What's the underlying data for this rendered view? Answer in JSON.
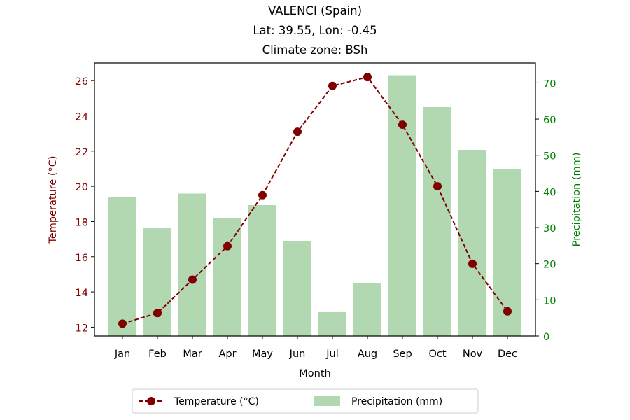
{
  "title_lines": [
    "VALENCI (Spain)",
    "Lat: 39.55, Lon: -0.45",
    "Climate zone: BSh"
  ],
  "chart_data": {
    "type": "bar+line",
    "title": "VALENCI (Spain)\nLat: 39.55, Lon: -0.45\nClimate zone: BSh",
    "xlabel": "Month",
    "categories": [
      "Jan",
      "Feb",
      "Mar",
      "Apr",
      "May",
      "Jun",
      "Jul",
      "Aug",
      "Sep",
      "Oct",
      "Nov",
      "Dec"
    ],
    "temperature": {
      "name": "Temperature (°C)",
      "axis_label": "Temperature (°C)",
      "values": [
        12.2,
        12.8,
        14.7,
        16.6,
        19.5,
        23.1,
        25.7,
        26.2,
        23.5,
        20.0,
        15.6,
        12.9
      ],
      "ylim": [
        11.5,
        27.0
      ],
      "ticks": [
        12,
        14,
        16,
        18,
        20,
        22,
        24,
        26
      ],
      "color": "#800000"
    },
    "precipitation": {
      "name": "Precipitation (mm)",
      "axis_label": "Precipitation (mm)",
      "values": [
        38.5,
        29.8,
        39.4,
        32.6,
        36.2,
        26.2,
        6.6,
        14.7,
        72.1,
        63.3,
        51.5,
        46.1
      ],
      "ylim": [
        0,
        75.5
      ],
      "ticks": [
        0,
        10,
        20,
        30,
        40,
        50,
        60,
        70
      ],
      "color": "#008000",
      "bar_color": "#b2d8b2"
    },
    "legend": {
      "position": "bottom-center",
      "entries": [
        "Temperature (°C)",
        "Precipitation (mm)"
      ]
    },
    "grid": false
  }
}
